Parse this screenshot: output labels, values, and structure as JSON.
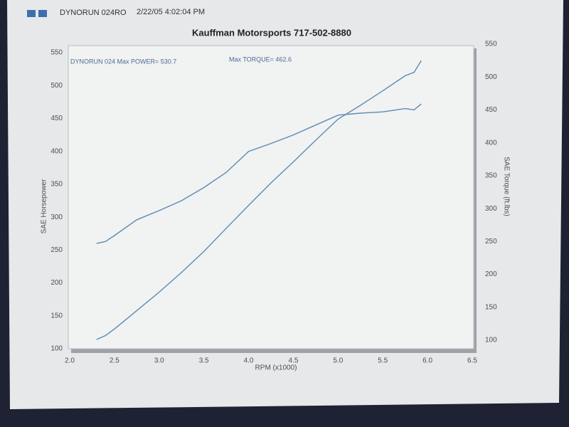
{
  "header": {
    "run": "DYNORUN 024RO",
    "date": "2/22/05 4:02:04 PM"
  },
  "chart_data": {
    "type": "line",
    "title": "Kauffman Motorsports 717-502-8880",
    "annotations": [
      "DYNORUN 024  Max POWER= 530.7",
      "Max TORQUE= 462.6"
    ],
    "xlabel": "RPM (x1000)",
    "ylabel": "SAE Horsepower",
    "y2label": "SAE Torque (ft.lbs)",
    "x": [
      2.3,
      2.4,
      2.5,
      2.75,
      3.0,
      3.25,
      3.5,
      3.75,
      4.0,
      4.25,
      4.5,
      4.75,
      5.0,
      5.25,
      5.5,
      5.75,
      5.85,
      5.93
    ],
    "series": [
      {
        "color": "#5b8bb4",
        "values": [
          114,
          120,
          130,
          158,
          186,
          216,
          248,
          283,
          318,
          352,
          384,
          417,
          449,
          470,
          492,
          515,
          520,
          538
        ]
      },
      {
        "color": "#5b8bb4",
        "axis": "y2",
        "values": [
          260,
          263,
          272,
          296,
          310,
          325,
          345,
          368,
          400,
          412,
          425,
          440,
          455,
          458,
          460,
          465,
          463,
          472
        ]
      }
    ],
    "xlim": [
      2.0,
      6.5
    ],
    "xticks": [
      {
        "value": 2.0,
        "label": "2.0"
      },
      {
        "value": 2.5,
        "label": "2.5"
      },
      {
        "value": 3.0,
        "label": "3.0"
      },
      {
        "value": 3.5,
        "label": "3.5"
      },
      {
        "value": 4.0,
        "label": "4.0"
      },
      {
        "value": 4.5,
        "label": "4.5"
      },
      {
        "value": 5.0,
        "label": "5.0"
      },
      {
        "value": 5.5,
        "label": "5.5"
      },
      {
        "value": 6.0,
        "label": "6.0"
      },
      {
        "value": 6.5,
        "label": "6.5"
      }
    ],
    "ylim": [
      100,
      550
    ],
    "yticks": [
      100,
      150,
      200,
      250,
      300,
      350,
      400,
      450,
      500,
      550
    ],
    "y2lim": [
      100,
      550
    ],
    "y2ticks": [
      100,
      150,
      200,
      250,
      300,
      350,
      400,
      450,
      500,
      550
    ],
    "grid": false
  }
}
